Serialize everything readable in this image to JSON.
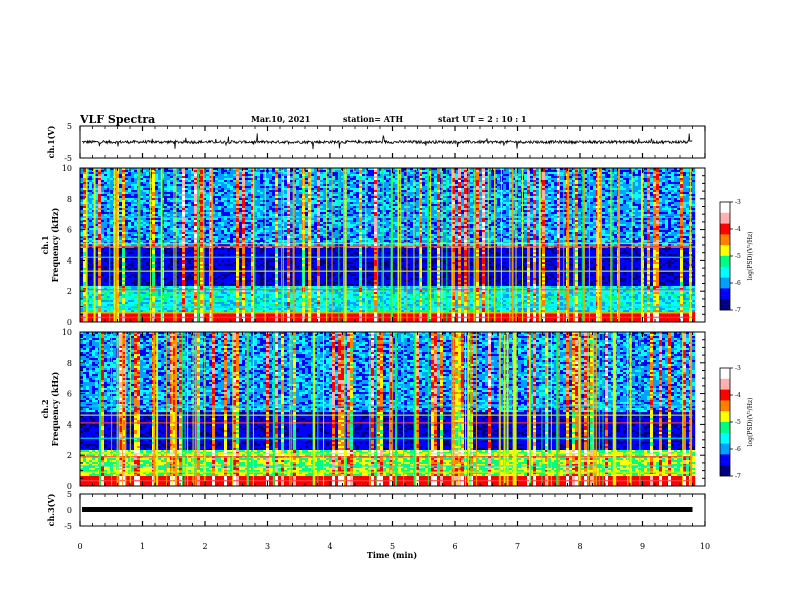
{
  "header": {
    "title": "VLF Spectra",
    "date": "Mar.10, 2021",
    "station": "station= ATH",
    "start": "start UT =   2 : 10 : 1"
  },
  "chart_data": [
    {
      "type": "line",
      "panel": "ch.1 waveform",
      "ylabel": "ch.1(V)",
      "ylim": [
        -5,
        5
      ],
      "yticks": [
        -5,
        5
      ],
      "xlim": [
        0,
        10
      ],
      "baseline": 0
    },
    {
      "type": "heatmap",
      "panel": "ch.1 spectrogram",
      "ylabel_line1": "ch.1",
      "ylabel_line2": "Frequency (kHz)",
      "ylim": [
        0,
        10
      ],
      "yticks": [
        0,
        2,
        4,
        6,
        8,
        10
      ],
      "xlim": [
        0,
        10
      ],
      "data_end_min": 9.8
    },
    {
      "type": "heatmap",
      "panel": "ch.2 spectrogram",
      "ylabel_line1": "ch.2",
      "ylabel_line2": "Frequency (kHz)",
      "ylim": [
        0,
        10
      ],
      "yticks": [
        0,
        2,
        4,
        6,
        8,
        10
      ],
      "xlim": [
        0,
        10
      ],
      "data_end_min": 9.8
    },
    {
      "type": "line",
      "panel": "ch.3 waveform",
      "ylabel": "ch.3(V)",
      "ylim": [
        -5,
        5
      ],
      "yticks": [
        -5,
        0,
        5
      ],
      "xlim": [
        0,
        10
      ],
      "baseline": 0
    }
  ],
  "x_axis": {
    "label": "Time (min)",
    "ticks": [
      0,
      1,
      2,
      3,
      4,
      5,
      6,
      7,
      8,
      9,
      10
    ]
  },
  "colorbar": {
    "label": "log(PSD)(V²/Hz)",
    "ticks": [
      -3,
      -4,
      -5,
      -6,
      -7
    ],
    "range": [
      -7,
      -3
    ],
    "colors": [
      "#000080",
      "#0000ff",
      "#00a0ff",
      "#00ffff",
      "#00ff80",
      "#ffff00",
      "#ff8000",
      "#ff0000",
      "#ffb0b0",
      "#ffffff"
    ]
  }
}
